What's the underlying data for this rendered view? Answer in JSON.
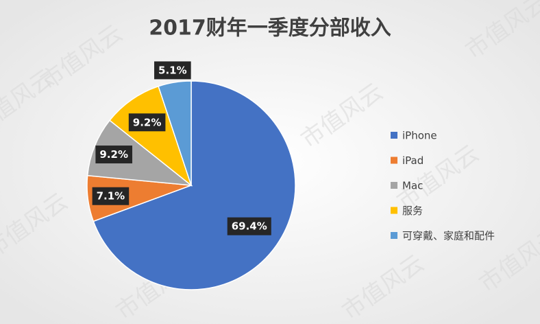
{
  "chart_data": {
    "type": "pie",
    "title": "2017财年一季度分部收入",
    "categories": [
      "iPhone",
      "iPad",
      "Mac",
      "服务",
      "可穿戴、家庭和配件"
    ],
    "values": [
      69.4,
      7.1,
      9.2,
      9.2,
      5.1
    ],
    "value_labels": [
      "69.4%",
      "7.1%",
      "9.2%",
      "9.2%",
      "5.1%"
    ],
    "colors": [
      "#4472c4",
      "#ed7d31",
      "#a5a5a5",
      "#ffc000",
      "#5b9bd5"
    ],
    "legend": "right"
  },
  "watermark": "市值风云"
}
